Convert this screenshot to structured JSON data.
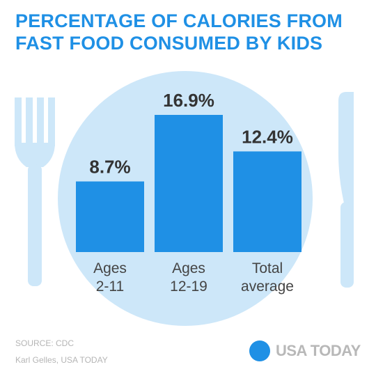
{
  "title_lines": [
    "PERCENTAGE OF CALORIES FROM",
    "FAST FOOD CONSUMED BY KIDS"
  ],
  "colors": {
    "accent": "#1f90e5",
    "plate": "#cde7f9",
    "cutlery": "#cde7f9",
    "muted_text": "#b5b5b5"
  },
  "chart_data": {
    "type": "bar",
    "categories": [
      [
        "Ages",
        "2-11"
      ],
      [
        "Ages",
        "12-19"
      ],
      [
        "Total",
        "average"
      ]
    ],
    "values": [
      8.7,
      16.9,
      12.4
    ],
    "value_labels": [
      "8.7%",
      "16.9%",
      "12.4%"
    ],
    "title": "PERCENTAGE OF CALORIES FROM FAST FOOD CONSUMED BY KIDS",
    "xlabel": "",
    "ylabel": "",
    "ylim": [
      0,
      16.9
    ],
    "grid": false,
    "legend": "none"
  },
  "footer": {
    "source": "SOURCE:  CDC",
    "credit": "Karl Gelles, USA TODAY"
  },
  "logo": {
    "text": "USA TODAY",
    "icon": "circle-logo-icon"
  }
}
